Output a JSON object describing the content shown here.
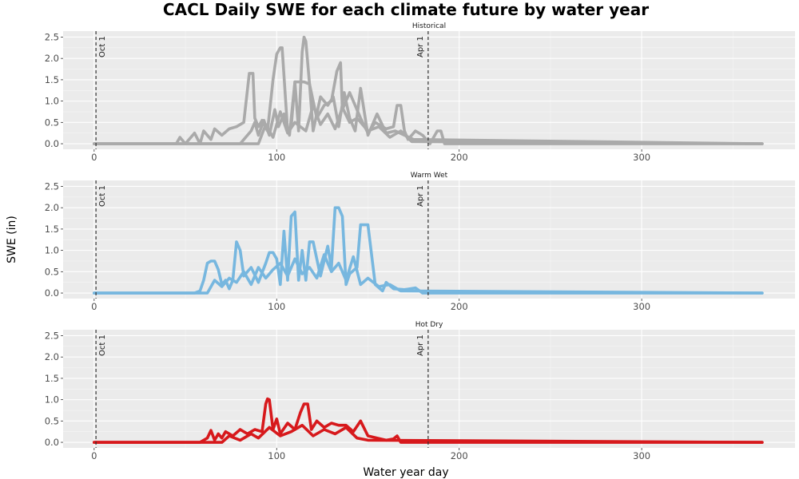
{
  "chart_data": {
    "type": "line",
    "title": "CACL Daily SWE for each climate future by water year",
    "xlabel": "Water year day",
    "ylabel": "SWE (in)",
    "xlim": [
      -17,
      384
    ],
    "ylim": [
      -0.13,
      2.64
    ],
    "x_ticks": [
      0,
      100,
      200,
      300
    ],
    "y_ticks": [
      0.0,
      0.5,
      1.0,
      1.5,
      2.0,
      2.5
    ],
    "x_tick_labels": [
      "0",
      "100",
      "200",
      "300"
    ],
    "y_tick_labels": [
      "0.0",
      "0.5",
      "1.0",
      "1.5",
      "2.0",
      "2.5"
    ],
    "grid": true,
    "legend": "none",
    "reference_lines": [
      {
        "x": 1,
        "label": "Oct 1",
        "style": "dashed"
      },
      {
        "x": 183,
        "label": "Apr 1",
        "style": "dashed"
      }
    ],
    "panels": [
      {
        "name": "Historical",
        "color": "#aaaaaa",
        "series": [
          {
            "x": [
              0,
              45,
              47,
              50,
              55,
              58,
              60,
              64,
              66,
              70,
              74,
              78,
              82,
              85,
              87,
              88,
              90,
              92,
              95,
              98,
              100,
              102,
              103,
              106,
              108,
              110,
              112,
              114,
              115,
              116,
              118,
              122,
              126,
              130,
              133,
              135,
              136,
              140,
              146,
              150,
              154,
              160,
              164,
              166,
              168,
              170,
              172,
              176,
              180,
              184,
              188,
              190,
              192,
              194,
              366
            ],
            "y": [
              0,
              0,
              0.15,
              0,
              0.25,
              0,
              0.3,
              0.1,
              0.35,
              0.2,
              0.35,
              0.4,
              0.5,
              1.65,
              1.65,
              0.6,
              0.4,
              0.55,
              0.3,
              1.5,
              2.1,
              2.25,
              2.25,
              0.3,
              0.4,
              1.45,
              0.3,
              2.15,
              2.5,
              2.4,
              1.4,
              0.6,
              0.9,
              1.0,
              1.7,
              1.9,
              0.8,
              1.2,
              0.6,
              0.25,
              0.5,
              0.35,
              0.4,
              0.9,
              0.9,
              0.3,
              0.1,
              0.3,
              0.2,
              0,
              0.3,
              0.3,
              0,
              0,
              0
            ]
          },
          {
            "x": [
              0,
              80,
              86,
              88,
              90,
              93,
              96,
              99,
              101,
              104,
              107,
              110,
              112,
              115,
              118,
              120,
              124,
              128,
              131,
              134,
              137,
              140,
              143,
              146,
              150,
              155,
              160,
              165,
              170,
              175,
              366
            ],
            "y": [
              0,
              0,
              0.3,
              0.5,
              0.2,
              0.55,
              0.2,
              0.8,
              0.4,
              0.7,
              0.2,
              1.45,
              1.45,
              1.45,
              1.4,
              0.3,
              1.1,
              0.9,
              1.1,
              0.4,
              1.2,
              0.6,
              0.3,
              1.3,
              0.2,
              0.7,
              0.25,
              0.3,
              0.2,
              0.1,
              0
            ]
          },
          {
            "x": [
              0,
              90,
              94,
              98,
              102,
              106,
              110,
              116,
              120,
              124,
              128,
              132,
              136,
              140,
              144,
              150,
              156,
              162,
              168,
              174,
              366
            ],
            "y": [
              0,
              0,
              0.45,
              0.15,
              0.75,
              0.25,
              0.5,
              0.3,
              0.9,
              0.45,
              0.7,
              0.35,
              0.85,
              0.5,
              0.6,
              0.3,
              0.4,
              0.15,
              0.3,
              0.05,
              0
            ]
          }
        ]
      },
      {
        "name": "Warm Wet",
        "color": "#77b7df",
        "series": [
          {
            "x": [
              0,
              55,
              58,
              60,
              62,
              64,
              66,
              68,
              70,
              72,
              74,
              76,
              78,
              80,
              82,
              86,
              90,
              94,
              96,
              98,
              100,
              102,
              104,
              106,
              108,
              110,
              112,
              114,
              116,
              118,
              120,
              124,
              128,
              130,
              132,
              134,
              136,
              138,
              140,
              144,
              146,
              148,
              150,
              154,
              158,
              160,
              164,
              170,
              176,
              180,
              366
            ],
            "y": [
              0,
              0,
              0.05,
              0.3,
              0.7,
              0.75,
              0.75,
              0.55,
              0.2,
              0.3,
              0.1,
              0.3,
              1.2,
              1.0,
              0.4,
              0.6,
              0.25,
              0.7,
              0.95,
              0.95,
              0.8,
              0.2,
              1.45,
              0.3,
              1.8,
              1.9,
              0.3,
              1.0,
              0.3,
              1.2,
              1.2,
              0.4,
              1.1,
              0.6,
              2.0,
              2.0,
              1.8,
              0.2,
              0.45,
              0.6,
              1.6,
              1.6,
              1.6,
              0.2,
              0.05,
              0.25,
              0.1,
              0.08,
              0.12,
              0,
              0
            ]
          },
          {
            "x": [
              0,
              62,
              66,
              70,
              74,
              78,
              82,
              86,
              90,
              94,
              98,
              102,
              106,
              110,
              114,
              118,
              122,
              126,
              130,
              134,
              138,
              142,
              146,
              150,
              156,
              162,
              168,
              366
            ],
            "y": [
              0,
              0,
              0.3,
              0.15,
              0.35,
              0.25,
              0.5,
              0.2,
              0.6,
              0.35,
              0.55,
              0.7,
              0.4,
              0.8,
              0.45,
              0.6,
              0.35,
              0.9,
              0.5,
              0.7,
              0.3,
              0.85,
              0.2,
              0.35,
              0.15,
              0.2,
              0.05,
              0
            ]
          }
        ]
      },
      {
        "name": "Hot Dry",
        "color": "#d7191c",
        "series": [
          {
            "x": [
              0,
              58,
              62,
              64,
              66,
              68,
              70,
              72,
              76,
              80,
              84,
              88,
              92,
              94,
              95,
              96,
              98,
              100,
              102,
              106,
              110,
              113,
              115,
              117,
              119,
              122,
              126,
              130,
              134,
              138,
              142,
              146,
              150,
              155,
              160,
              164,
              166,
              168,
              366
            ],
            "y": [
              0,
              0,
              0.1,
              0.28,
              0.05,
              0.2,
              0.1,
              0.25,
              0.15,
              0.3,
              0.2,
              0.3,
              0.25,
              0.9,
              1.02,
              1.0,
              0.3,
              0.55,
              0.2,
              0.45,
              0.3,
              0.7,
              0.9,
              0.9,
              0.3,
              0.5,
              0.35,
              0.45,
              0.4,
              0.4,
              0.25,
              0.5,
              0.15,
              0.1,
              0.05,
              0.08,
              0.15,
              0,
              0
            ]
          },
          {
            "x": [
              0,
              70,
              74,
              80,
              86,
              90,
              96,
              102,
              108,
              114,
              120,
              126,
              132,
              138,
              144,
              150,
              366
            ],
            "y": [
              0,
              0,
              0.15,
              0.05,
              0.2,
              0.1,
              0.35,
              0.15,
              0.25,
              0.4,
              0.15,
              0.3,
              0.2,
              0.35,
              0.1,
              0.05,
              0
            ]
          }
        ]
      }
    ]
  }
}
